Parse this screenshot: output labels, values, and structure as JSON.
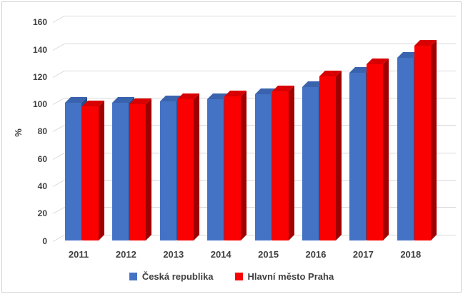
{
  "chart_data": {
    "type": "bar",
    "style": "3d-clustered-column",
    "title": "",
    "xlabel": "",
    "ylabel": "%",
    "categories": [
      "2011",
      "2012",
      "2013",
      "2014",
      "2015",
      "2016",
      "2017",
      "2018"
    ],
    "series": [
      {
        "name": "Česká republika",
        "color": "#4472C4",
        "color_top": "#3A63AE",
        "color_side": "#2A4A89",
        "values": [
          101,
          101,
          102,
          103.5,
          107,
          112.5,
          122.5,
          133.5
        ]
      },
      {
        "name": "Hlavní město Praha",
        "color": "#FB0000",
        "color_top": "#D80000",
        "color_side": "#A00000",
        "values": [
          98,
          100,
          103.5,
          105.5,
          109,
          120,
          129,
          142.5
        ]
      }
    ],
    "yticks": [
      0,
      20,
      40,
      60,
      80,
      100,
      120,
      140,
      160
    ],
    "ylim": [
      0,
      160
    ],
    "grid": true,
    "grid_color": "#D9D9D9",
    "text_color": "#404040",
    "background_color": "#FFFFFF",
    "legend_position": "bottom"
  }
}
